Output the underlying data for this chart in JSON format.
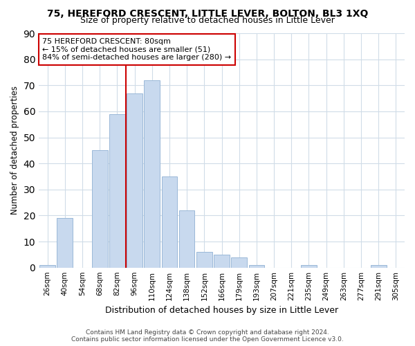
{
  "title": "75, HEREFORD CRESCENT, LITTLE LEVER, BOLTON, BL3 1XQ",
  "subtitle": "Size of property relative to detached houses in Little Lever",
  "xlabel": "Distribution of detached houses by size in Little Lever",
  "ylabel": "Number of detached properties",
  "categories": [
    "26sqm",
    "40sqm",
    "54sqm",
    "68sqm",
    "82sqm",
    "96sqm",
    "110sqm",
    "124sqm",
    "138sqm",
    "152sqm",
    "166sqm",
    "179sqm",
    "193sqm",
    "207sqm",
    "221sqm",
    "235sqm",
    "249sqm",
    "263sqm",
    "277sqm",
    "291sqm",
    "305sqm"
  ],
  "values": [
    1,
    19,
    0,
    45,
    59,
    67,
    72,
    35,
    22,
    6,
    5,
    4,
    1,
    0,
    0,
    1,
    0,
    0,
    0,
    1,
    0
  ],
  "bar_color": "#c8d9ee",
  "bar_edge_color": "#9ab8d8",
  "highlight_color": "#cc0000",
  "vline_x": 4.5,
  "annotation_line1": "75 HEREFORD CRESCENT: 80sqm",
  "annotation_line2": "← 15% of detached houses are smaller (51)",
  "annotation_line3": "84% of semi-detached houses are larger (280) →",
  "annotation_box_color": "#ffffff",
  "annotation_box_border_color": "#cc0000",
  "ylim": [
    0,
    90
  ],
  "yticks": [
    0,
    10,
    20,
    30,
    40,
    50,
    60,
    70,
    80,
    90
  ],
  "footer_line1": "Contains HM Land Registry data © Crown copyright and database right 2024.",
  "footer_line2": "Contains public sector information licensed under the Open Government Licence v3.0.",
  "bg_color": "#ffffff",
  "grid_color": "#d0dce8",
  "title_fontsize": 10,
  "subtitle_fontsize": 9,
  "xlabel_fontsize": 9,
  "ylabel_fontsize": 8.5,
  "tick_fontsize": 7.5,
  "footer_fontsize": 6.5
}
